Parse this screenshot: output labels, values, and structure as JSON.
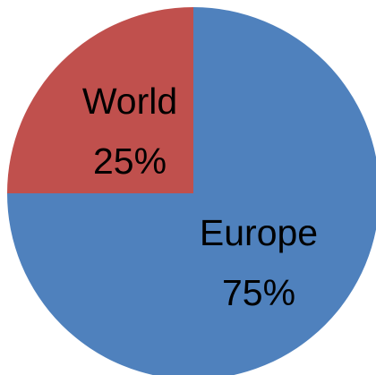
{
  "chart_data": {
    "type": "pie",
    "title": "",
    "slices": [
      {
        "label": "Europe",
        "value": 75,
        "display": "75%",
        "color": "#4F81BD"
      },
      {
        "label": "World",
        "value": 25,
        "display": "25%",
        "color": "#C0504D"
      }
    ],
    "legend": "none"
  }
}
